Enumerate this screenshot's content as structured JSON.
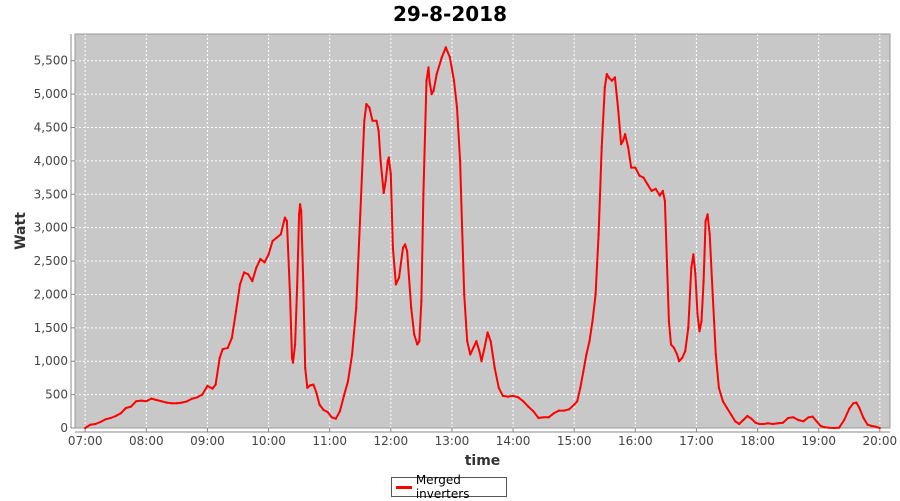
{
  "chart_data": {
    "type": "line",
    "title": "29-8-2018",
    "xlabel": "time",
    "ylabel": "Watt",
    "x_ticks": [
      "07:00",
      "08:00",
      "09:00",
      "10:00",
      "11:00",
      "12:00",
      "13:00",
      "14:00",
      "15:00",
      "16:00",
      "17:00",
      "18:00",
      "19:00",
      "20:00"
    ],
    "y_ticks": [
      "0",
      "500",
      "1,000",
      "1,500",
      "2,000",
      "2,500",
      "3,000",
      "3,500",
      "4,000",
      "4,500",
      "5,000",
      "5,500"
    ],
    "xlim": [
      "06:50",
      "20:10"
    ],
    "ylim": [
      0,
      5900
    ],
    "grid": true,
    "legend_position": "bottom-center",
    "background_color": "#c8c8c8",
    "series": [
      {
        "name": "Merged inverters",
        "color": "#ff0000",
        "points": [
          [
            "07:00",
            0
          ],
          [
            "07:05",
            50
          ],
          [
            "07:10",
            60
          ],
          [
            "07:15",
            90
          ],
          [
            "07:20",
            130
          ],
          [
            "07:25",
            150
          ],
          [
            "07:30",
            180
          ],
          [
            "07:35",
            220
          ],
          [
            "07:40",
            300
          ],
          [
            "07:45",
            320
          ],
          [
            "07:50",
            400
          ],
          [
            "07:55",
            410
          ],
          [
            "08:00",
            400
          ],
          [
            "08:05",
            440
          ],
          [
            "08:10",
            420
          ],
          [
            "08:15",
            400
          ],
          [
            "08:20",
            380
          ],
          [
            "08:25",
            370
          ],
          [
            "08:30",
            370
          ],
          [
            "08:35",
            380
          ],
          [
            "08:40",
            400
          ],
          [
            "08:45",
            440
          ],
          [
            "08:50",
            460
          ],
          [
            "08:55",
            500
          ],
          [
            "09:00",
            630
          ],
          [
            "09:05",
            590
          ],
          [
            "09:08",
            650
          ],
          [
            "09:12",
            1050
          ],
          [
            "09:15",
            1180
          ],
          [
            "09:20",
            1200
          ],
          [
            "09:24",
            1350
          ],
          [
            "09:28",
            1750
          ],
          [
            "09:32",
            2150
          ],
          [
            "09:36",
            2330
          ],
          [
            "09:40",
            2300
          ],
          [
            "09:44",
            2200
          ],
          [
            "09:48",
            2400
          ],
          [
            "09:52",
            2530
          ],
          [
            "09:56",
            2480
          ],
          [
            "10:00",
            2600
          ],
          [
            "10:04",
            2800
          ],
          [
            "10:08",
            2850
          ],
          [
            "10:12",
            2900
          ],
          [
            "10:16",
            3150
          ],
          [
            "10:18",
            3100
          ],
          [
            "10:21",
            2000
          ],
          [
            "10:23",
            1050
          ],
          [
            "10:24",
            980
          ],
          [
            "10:26",
            1250
          ],
          [
            "10:28",
            2100
          ],
          [
            "10:30",
            3200
          ],
          [
            "10:31",
            3350
          ],
          [
            "10:32",
            3250
          ],
          [
            "10:34",
            2200
          ],
          [
            "10:36",
            900
          ],
          [
            "10:38",
            600
          ],
          [
            "10:41",
            640
          ],
          [
            "10:44",
            650
          ],
          [
            "10:47",
            530
          ],
          [
            "10:50",
            350
          ],
          [
            "10:54",
            270
          ],
          [
            "10:58",
            240
          ],
          [
            "11:02",
            160
          ],
          [
            "11:06",
            140
          ],
          [
            "11:10",
            250
          ],
          [
            "11:14",
            480
          ],
          [
            "11:18",
            700
          ],
          [
            "11:22",
            1100
          ],
          [
            "11:26",
            1800
          ],
          [
            "11:30",
            3200
          ],
          [
            "11:34",
            4600
          ],
          [
            "11:36",
            4850
          ],
          [
            "11:39",
            4800
          ],
          [
            "11:42",
            4600
          ],
          [
            "11:46",
            4600
          ],
          [
            "11:48",
            4450
          ],
          [
            "11:50",
            4000
          ],
          [
            "11:53",
            3520
          ],
          [
            "11:55",
            3700
          ],
          [
            "11:57",
            4000
          ],
          [
            "11:58",
            4050
          ],
          [
            "12:00",
            3800
          ],
          [
            "12:02",
            2700
          ],
          [
            "12:05",
            2150
          ],
          [
            "12:08",
            2250
          ],
          [
            "12:12",
            2700
          ],
          [
            "12:14",
            2750
          ],
          [
            "12:16",
            2650
          ],
          [
            "12:20",
            1800
          ],
          [
            "12:23",
            1400
          ],
          [
            "12:26",
            1250
          ],
          [
            "12:28",
            1300
          ],
          [
            "12:30",
            1900
          ],
          [
            "12:32",
            3500
          ],
          [
            "12:35",
            5200
          ],
          [
            "12:37",
            5400
          ],
          [
            "12:38",
            5200
          ],
          [
            "12:40",
            5000
          ],
          [
            "12:42",
            5050
          ],
          [
            "12:45",
            5300
          ],
          [
            "12:50",
            5550
          ],
          [
            "12:54",
            5700
          ],
          [
            "12:58",
            5550
          ],
          [
            "13:02",
            5200
          ],
          [
            "13:05",
            4800
          ],
          [
            "13:08",
            4000
          ],
          [
            "13:10",
            3000
          ],
          [
            "13:12",
            2000
          ],
          [
            "13:15",
            1300
          ],
          [
            "13:18",
            1100
          ],
          [
            "13:21",
            1200
          ],
          [
            "13:24",
            1300
          ],
          [
            "13:27",
            1150
          ],
          [
            "13:29",
            1000
          ],
          [
            "13:32",
            1200
          ],
          [
            "13:35",
            1430
          ],
          [
            "13:38",
            1300
          ],
          [
            "13:42",
            900
          ],
          [
            "13:46",
            600
          ],
          [
            "13:50",
            480
          ],
          [
            "13:55",
            470
          ],
          [
            "14:00",
            480
          ],
          [
            "14:05",
            460
          ],
          [
            "14:10",
            400
          ],
          [
            "14:15",
            320
          ],
          [
            "14:20",
            250
          ],
          [
            "14:25",
            150
          ],
          [
            "14:30",
            160
          ],
          [
            "14:35",
            160
          ],
          [
            "14:40",
            220
          ],
          [
            "14:45",
            260
          ],
          [
            "14:50",
            260
          ],
          [
            "14:55",
            280
          ],
          [
            "15:00",
            350
          ],
          [
            "15:03",
            400
          ],
          [
            "15:06",
            600
          ],
          [
            "15:09",
            850
          ],
          [
            "15:12",
            1100
          ],
          [
            "15:15",
            1300
          ],
          [
            "15:18",
            1600
          ],
          [
            "15:21",
            2000
          ],
          [
            "15:24",
            2900
          ],
          [
            "15:27",
            4200
          ],
          [
            "15:30",
            5100
          ],
          [
            "15:32",
            5300
          ],
          [
            "15:34",
            5250
          ],
          [
            "15:37",
            5200
          ],
          [
            "15:40",
            5250
          ],
          [
            "15:43",
            4800
          ],
          [
            "15:46",
            4250
          ],
          [
            "15:48",
            4300
          ],
          [
            "15:50",
            4400
          ],
          [
            "15:53",
            4200
          ],
          [
            "15:56",
            3900
          ],
          [
            "16:00",
            3900
          ],
          [
            "16:04",
            3780
          ],
          [
            "16:08",
            3750
          ],
          [
            "16:12",
            3650
          ],
          [
            "16:16",
            3550
          ],
          [
            "16:20",
            3580
          ],
          [
            "16:24",
            3480
          ],
          [
            "16:27",
            3550
          ],
          [
            "16:29",
            3400
          ],
          [
            "16:31",
            2500
          ],
          [
            "16:33",
            1600
          ],
          [
            "16:35",
            1250
          ],
          [
            "16:38",
            1200
          ],
          [
            "16:41",
            1100
          ],
          [
            "16:43",
            1000
          ],
          [
            "16:46",
            1050
          ],
          [
            "16:49",
            1150
          ],
          [
            "16:52",
            1500
          ],
          [
            "16:55",
            2400
          ],
          [
            "16:57",
            2600
          ],
          [
            "16:59",
            2300
          ],
          [
            "17:01",
            1700
          ],
          [
            "17:03",
            1450
          ],
          [
            "17:05",
            1600
          ],
          [
            "17:07",
            2200
          ],
          [
            "17:09",
            3100
          ],
          [
            "17:11",
            3200
          ],
          [
            "17:13",
            2900
          ],
          [
            "17:16",
            2000
          ],
          [
            "17:19",
            1100
          ],
          [
            "17:22",
            600
          ],
          [
            "17:26",
            400
          ],
          [
            "17:30",
            300
          ],
          [
            "17:34",
            200
          ],
          [
            "17:38",
            100
          ],
          [
            "17:42",
            60
          ],
          [
            "17:46",
            120
          ],
          [
            "17:50",
            180
          ],
          [
            "17:54",
            140
          ],
          [
            "17:58",
            80
          ],
          [
            "18:02",
            60
          ],
          [
            "18:06",
            60
          ],
          [
            "18:10",
            70
          ],
          [
            "18:15",
            60
          ],
          [
            "18:20",
            70
          ],
          [
            "18:25",
            80
          ],
          [
            "18:30",
            150
          ],
          [
            "18:35",
            160
          ],
          [
            "18:40",
            120
          ],
          [
            "18:45",
            100
          ],
          [
            "18:50",
            160
          ],
          [
            "18:54",
            170
          ],
          [
            "18:58",
            100
          ],
          [
            "19:02",
            30
          ],
          [
            "19:06",
            10
          ],
          [
            "19:10",
            5
          ],
          [
            "19:15",
            0
          ],
          [
            "19:20",
            5
          ],
          [
            "19:25",
            120
          ],
          [
            "19:30",
            290
          ],
          [
            "19:34",
            370
          ],
          [
            "19:37",
            380
          ],
          [
            "19:40",
            300
          ],
          [
            "19:44",
            150
          ],
          [
            "19:48",
            50
          ],
          [
            "19:52",
            30
          ],
          [
            "19:56",
            20
          ],
          [
            "20:00",
            0
          ]
        ]
      }
    ]
  }
}
